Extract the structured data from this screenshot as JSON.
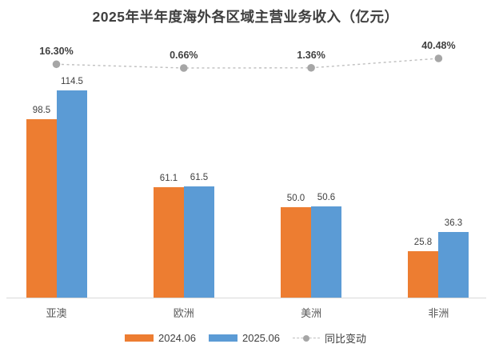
{
  "title": "2025年半年度海外各区域主营业务收入（亿元）",
  "colors": {
    "bar_2024": "#ed7d31",
    "bar_2025": "#5b9bd5",
    "line_dash": "#bfbfbf",
    "line_marker": "#a6a6a6",
    "label_text": "#404040",
    "category_text": "#595959",
    "axis_line": "#d9d9d9"
  },
  "legend": {
    "items": [
      {
        "label": "2024.06",
        "swatch": "bar-orange"
      },
      {
        "label": "2025.06",
        "swatch": "bar-blue"
      },
      {
        "label": "同比变动",
        "swatch": "dashed-line-dot"
      }
    ]
  },
  "chart_data": {
    "type": "bar",
    "subtype": "grouped-bars-with-secondary-line",
    "title": "2025年半年度海外各区域主营业务收入（亿元）",
    "categories": [
      "亚澳",
      "欧洲",
      "美洲",
      "非洲"
    ],
    "series": [
      {
        "name": "2024.06",
        "type": "bar",
        "values": [
          98.5,
          61.1,
          50.0,
          25.8
        ],
        "labels": [
          "98.5",
          "61.1",
          "50.0",
          "25.8"
        ]
      },
      {
        "name": "2025.06",
        "type": "bar",
        "values": [
          114.5,
          61.5,
          50.6,
          36.3
        ],
        "labels": [
          "114.5",
          "61.5",
          "50.6",
          "36.3"
        ]
      },
      {
        "name": "同比变动",
        "type": "line",
        "values": [
          16.3,
          0.66,
          1.36,
          40.48
        ],
        "labels": [
          "16.30%",
          "0.66%",
          "1.36%",
          "40.48%"
        ]
      }
    ],
    "xlabel": "",
    "ylabel": "",
    "ylim_primary": [
      0,
      140
    ],
    "grid": false,
    "legend_position": "bottom",
    "data_labels": true
  }
}
